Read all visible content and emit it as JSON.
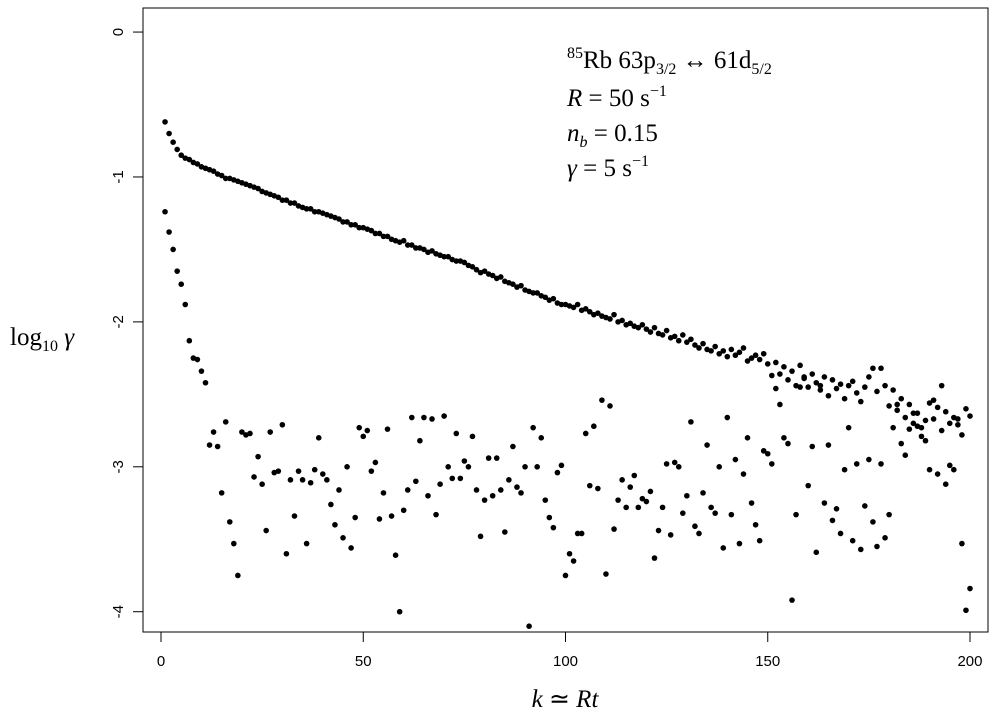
{
  "chart_data": {
    "type": "scatter",
    "xlabel": [
      "k",
      " ≃ ",
      "Rt"
    ],
    "ylabel": [
      "log",
      "10",
      " γ"
    ],
    "annotation": [
      [
        "85",
        "Rb 63p",
        "3/2",
        " ↔ 61d",
        "5/2"
      ],
      [
        "R",
        " = 50 s",
        "−1"
      ],
      [
        "n",
        "b",
        " = 0.15"
      ],
      [
        "γ",
        " = 5 s",
        "−1"
      ]
    ],
    "xlim": [
      -4.45,
      204.45
    ],
    "ylim": [
      -4.14,
      0.166
    ],
    "xticks": [
      0,
      50,
      100,
      150,
      200
    ],
    "yticks": [
      0,
      -1,
      -2,
      -3,
      -4
    ],
    "x": [
      1,
      2,
      3,
      4,
      5,
      6,
      7,
      8,
      9,
      10,
      11,
      12,
      13,
      14,
      15,
      16,
      17,
      18,
      19,
      20,
      21,
      22,
      23,
      24,
      25,
      26,
      27,
      28,
      29,
      30,
      31,
      32,
      33,
      34,
      35,
      36,
      37,
      38,
      39,
      40,
      41,
      42,
      43,
      44,
      45,
      46,
      47,
      48,
      49,
      50,
      51,
      52,
      53,
      54,
      55,
      56,
      57,
      58,
      59,
      60,
      61,
      62,
      63,
      64,
      65,
      66,
      67,
      68,
      69,
      70,
      71,
      72,
      73,
      74,
      75,
      76,
      77,
      78,
      79,
      80,
      81,
      82,
      83,
      84,
      85,
      86,
      87,
      88,
      89,
      90,
      91,
      92,
      93,
      94,
      95,
      96,
      97,
      98,
      99,
      100,
      101,
      102,
      103,
      104,
      105,
      106,
      107,
      108,
      109,
      110,
      111,
      112,
      113,
      114,
      115,
      116,
      117,
      118,
      119,
      120,
      121,
      122,
      123,
      124,
      125,
      126,
      127,
      128,
      129,
      130,
      131,
      132,
      133,
      134,
      135,
      136,
      137,
      138,
      139,
      140,
      141,
      142,
      143,
      144,
      145,
      146,
      147,
      148,
      149,
      150,
      151,
      152,
      153,
      154,
      155,
      156,
      157,
      158,
      159,
      160,
      161,
      162,
      163,
      164,
      165,
      166,
      167,
      168,
      169,
      170,
      171,
      172,
      173,
      174,
      175,
      176,
      177,
      178,
      179,
      180,
      181,
      182,
      183,
      184,
      185,
      186,
      187,
      188,
      189,
      190,
      191,
      192,
      193,
      194,
      195,
      196,
      197,
      198,
      199,
      200
    ],
    "series": [
      {
        "color": "#000000",
        "values": [
          -0.62,
          -0.7,
          -0.76,
          -0.81,
          -0.85,
          -0.87,
          -0.88,
          -0.9,
          -0.91,
          -0.93,
          -0.94,
          -0.95,
          -0.96,
          -0.98,
          -0.99,
          -1.01,
          -1.01,
          -1.02,
          -1.03,
          -1.04,
          -1.05,
          -1.06,
          -1.07,
          -1.08,
          -1.1,
          -1.11,
          -1.12,
          -1.13,
          -1.14,
          -1.16,
          -1.16,
          -1.18,
          -1.18,
          -1.2,
          -1.21,
          -1.22,
          -1.22,
          -1.24,
          -1.24,
          -1.25,
          -1.26,
          -1.27,
          -1.28,
          -1.29,
          -1.31,
          -1.31,
          -1.33,
          -1.33,
          -1.35,
          -1.35,
          -1.36,
          -1.37,
          -1.39,
          -1.39,
          -1.41,
          -1.41,
          -1.43,
          -1.44,
          -1.45,
          -1.44,
          -1.47,
          -1.47,
          -1.49,
          -1.49,
          -1.5,
          -1.52,
          -1.51,
          -1.53,
          -1.54,
          -1.55,
          -1.55,
          -1.57,
          -1.58,
          -1.58,
          -1.59,
          -1.61,
          -1.62,
          -1.64,
          -1.66,
          -1.65,
          -1.67,
          -1.68,
          -1.7,
          -1.69,
          -1.72,
          -1.73,
          -1.74,
          -1.76,
          -1.75,
          -1.78,
          -1.79,
          -1.8,
          -1.8,
          -1.82,
          -1.83,
          -1.85,
          -1.84,
          -1.87,
          -1.88,
          -1.88,
          -1.89,
          -1.9,
          -1.88,
          -1.92,
          -1.91,
          -1.93,
          -1.95,
          -1.94,
          -1.96,
          -1.97,
          -1.98,
          -1.95,
          -2.0,
          -1.99,
          -2.02,
          -2.01,
          -2.03,
          -2.04,
          -2.02,
          -2.05,
          -2.07,
          -2.04,
          -2.08,
          -2.09,
          -2.06,
          -2.11,
          -2.1,
          -2.13,
          -2.09,
          -2.14,
          -2.12,
          -2.16,
          -2.18,
          -2.15,
          -2.19,
          -2.2,
          -2.17,
          -2.22,
          -2.2,
          -2.24,
          -2.19,
          -2.23,
          -2.21,
          -2.18,
          -2.27,
          -2.25,
          -2.23,
          -2.26,
          -2.22,
          -2.29,
          -2.37,
          -2.28,
          -2.36,
          -2.31,
          -2.4,
          -2.34,
          -2.44,
          -2.3,
          -2.39,
          -2.45,
          -2.36,
          -2.42,
          -2.47,
          -2.38,
          -2.51,
          -2.4,
          -2.46,
          -2.43,
          -2.53,
          -2.44,
          -2.41,
          -2.49,
          -2.55,
          -2.45,
          -2.38,
          -2.32,
          -2.48,
          -2.32,
          -2.44,
          -2.58,
          -2.47,
          -2.61,
          -2.53,
          -2.66,
          -2.57,
          -2.7,
          -2.63,
          -2.73,
          -2.68,
          -2.56,
          -2.67,
          -2.59,
          -2.75,
          -2.62,
          -2.7,
          -2.66,
          -2.71,
          -2.78,
          -2.6,
          -2.65
        ]
      },
      {
        "color": "#000000",
        "values": [
          -1.24,
          -1.38,
          -1.5,
          -1.65,
          -1.74,
          -1.88,
          -2.13,
          -2.25,
          -2.26,
          -2.34,
          -2.42,
          -2.85,
          -2.76,
          -2.86,
          -3.18,
          -2.69,
          -3.38,
          -3.53,
          -3.75,
          -2.76,
          -2.78,
          -2.77,
          -3.07,
          -2.93,
          -3.12,
          -3.44,
          -2.76,
          -3.04,
          -3.03,
          -2.71,
          -3.6,
          -3.09,
          -3.34,
          -3.03,
          -3.09,
          -3.53,
          -3.11,
          -3.02,
          -2.8,
          -3.05,
          -3.09,
          -3.26,
          -3.4,
          -3.16,
          -3.49,
          -3.0,
          -3.56,
          -3.35,
          -2.73,
          -2.79,
          -2.75,
          -3.03,
          -2.97,
          -3.36,
          -3.18,
          -2.74,
          -3.34,
          -3.61,
          -4.0,
          -3.3,
          -3.16,
          -2.66,
          -3.1,
          -2.82,
          -2.66,
          -3.2,
          -2.67,
          -3.33,
          -3.12,
          -2.65,
          -3.0,
          -3.08,
          -2.77,
          -3.08,
          -2.96,
          -3.0,
          -2.79,
          -3.16,
          -3.48,
          -3.23,
          -2.94,
          -3.2,
          -2.94,
          -3.16,
          -3.45,
          -3.09,
          -2.86,
          -3.14,
          -3.18,
          -3.0,
          -4.1,
          -2.73,
          -3.0,
          -2.8,
          -3.23,
          -3.35,
          -3.42,
          -3.04,
          -2.99,
          -3.75,
          -3.6,
          -3.65,
          -3.46,
          -3.46,
          -2.77,
          -3.13,
          -2.72,
          -3.15,
          -2.54,
          -3.74,
          -2.58,
          -3.43,
          -3.23,
          -3.09,
          -3.28,
          -3.14,
          -3.06,
          -3.28,
          -3.22,
          -3.24,
          -3.17,
          -3.63,
          -3.44,
          -3.28,
          -2.98,
          -3.47,
          -2.97,
          -3.0,
          -3.32,
          -3.2,
          -2.69,
          -3.41,
          -3.46,
          -3.18,
          -2.85,
          -3.28,
          -3.32,
          -3.0,
          -3.56,
          -2.66,
          -3.33,
          -2.95,
          -3.53,
          -3.05,
          -2.8,
          -3.25,
          -3.4,
          -3.51,
          -2.89,
          -2.91,
          -2.98,
          -2.46,
          -2.57,
          -2.8,
          -2.84,
          -3.92,
          -3.33,
          -2.45,
          -2.38,
          -3.13,
          -2.86,
          -3.59,
          -2.44,
          -3.25,
          -2.85,
          -3.37,
          -3.29,
          -3.46,
          -3.02,
          -2.73,
          -3.51,
          -2.98,
          -3.57,
          -3.27,
          -2.95,
          -3.38,
          -3.55,
          -2.98,
          -3.49,
          -3.33,
          -2.73,
          -2.57,
          -2.84,
          -2.92,
          -2.74,
          -2.63,
          -2.72,
          -2.79,
          -2.82,
          -3.02,
          -2.54,
          -3.05,
          -2.44,
          -3.12,
          -2.99,
          -3.02,
          -2.67,
          -3.53,
          -3.99,
          -3.84
        ]
      }
    ]
  }
}
